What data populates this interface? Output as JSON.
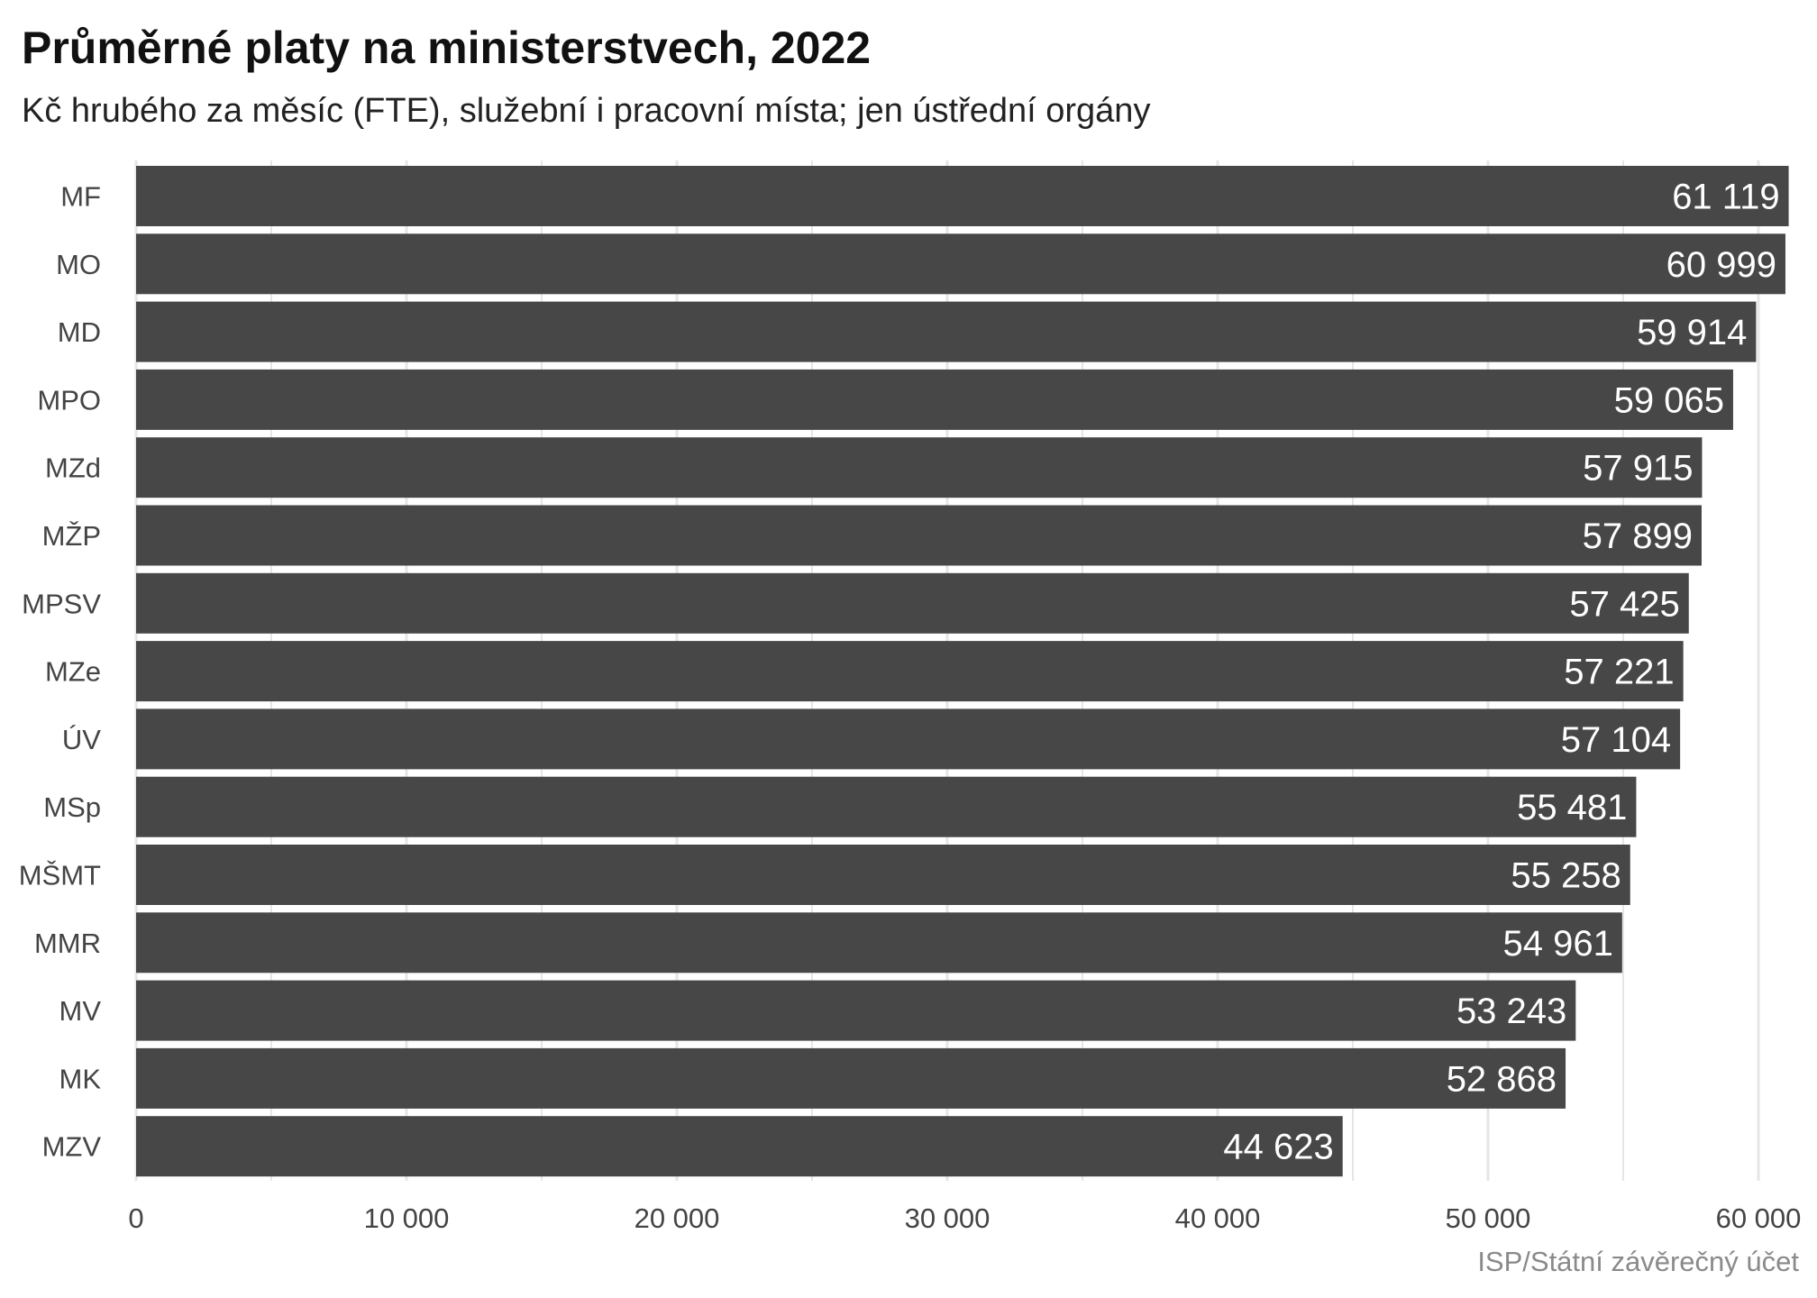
{
  "header": {
    "title": "Průměrné platy na ministerstvech, 2022",
    "subtitle": "Kč hrubého za měsíc (FTE), služební i pracovní místa; jen ústřední orgány"
  },
  "footer": {
    "source": "ISP/Státní závěrečný účet"
  },
  "colors": {
    "bar": "#474747",
    "grid": "#e6e6e6",
    "label": "#ffffff"
  },
  "chart_data": {
    "type": "bar",
    "orientation": "horizontal",
    "categories": [
      "MF",
      "MO",
      "MD",
      "MPO",
      "MZd",
      "MŽP",
      "MPSV",
      "MZe",
      "ÚV",
      "MSp",
      "MŠMT",
      "MMR",
      "MV",
      "MK",
      "MZV"
    ],
    "values": [
      61119,
      60999,
      59914,
      59065,
      57915,
      57899,
      57425,
      57221,
      57104,
      55481,
      55258,
      54961,
      53243,
      52868,
      44623
    ],
    "value_labels": [
      "61 119",
      "60 999",
      "59 914",
      "59 065",
      "57 915",
      "57 899",
      "57 425",
      "57 221",
      "57 104",
      "55 481",
      "55 258",
      "54 961",
      "53 243",
      "52 868",
      "44 623"
    ],
    "x_ticks": [
      0,
      10000,
      20000,
      30000,
      40000,
      50000,
      60000
    ],
    "x_tick_labels": [
      "0",
      "10 000",
      "20 000",
      "30 000",
      "40 000",
      "50 000",
      "60 000"
    ],
    "xlim": [
      0,
      62000
    ],
    "xlabel": "",
    "ylabel": "",
    "grid": true,
    "legend": "none"
  }
}
